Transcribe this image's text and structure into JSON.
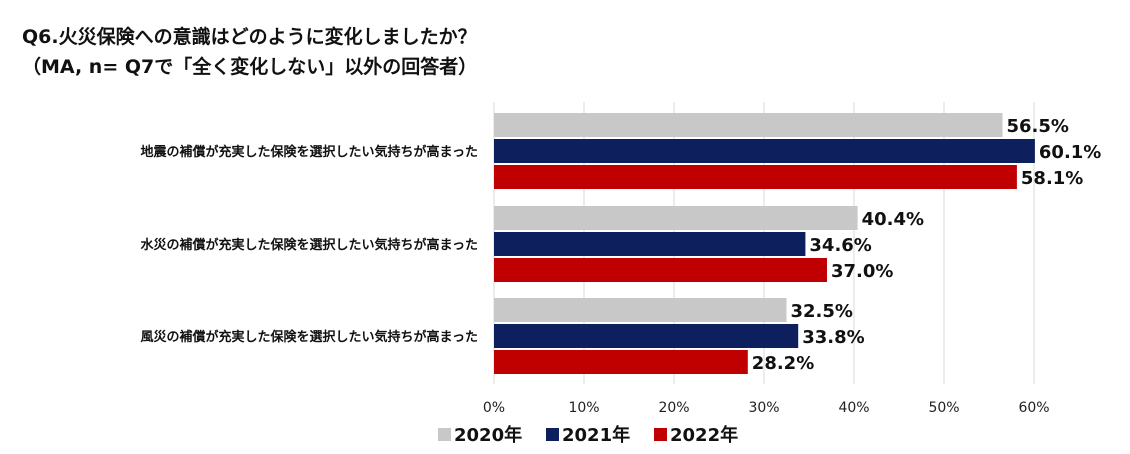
{
  "chart_data": {
    "type": "bar",
    "orientation": "horizontal",
    "title": "Q6.火災保険への意識はどのように変化しましたか？",
    "subtitle": "（MA, n= Q7で「全く変化しない」以外の回答者）",
    "categories": [
      "地震の補償が充実した保険を選択したい気持ちが高まった",
      "水災の補償が充実した保険を選択したい気持ちが高まった",
      "風災の補償が充実した保険を選択したい気持ちが高まった"
    ],
    "series": [
      {
        "name": "2020年",
        "color": "#c8c8c8",
        "values": [
          56.5,
          40.4,
          32.5
        ],
        "labels": [
          "56.5%",
          "40.4%",
          "32.5%"
        ]
      },
      {
        "name": "2021年",
        "color": "#0d1f5c",
        "values": [
          60.1,
          34.6,
          33.8
        ],
        "labels": [
          "60.1%",
          "34.6%",
          "33.8%"
        ]
      },
      {
        "name": "2022年",
        "color": "#c00000",
        "values": [
          58.1,
          37.0,
          28.2
        ],
        "labels": [
          "58.1%",
          "37.0%",
          "28.2%"
        ]
      }
    ],
    "xlim": [
      0,
      60
    ],
    "xticks": [
      0,
      10,
      20,
      30,
      40,
      50,
      60
    ],
    "xtick_labels": [
      "0%",
      "10%",
      "20%",
      "30%",
      "40%",
      "50%",
      "60%"
    ],
    "grid": true,
    "legend_position": "bottom"
  }
}
